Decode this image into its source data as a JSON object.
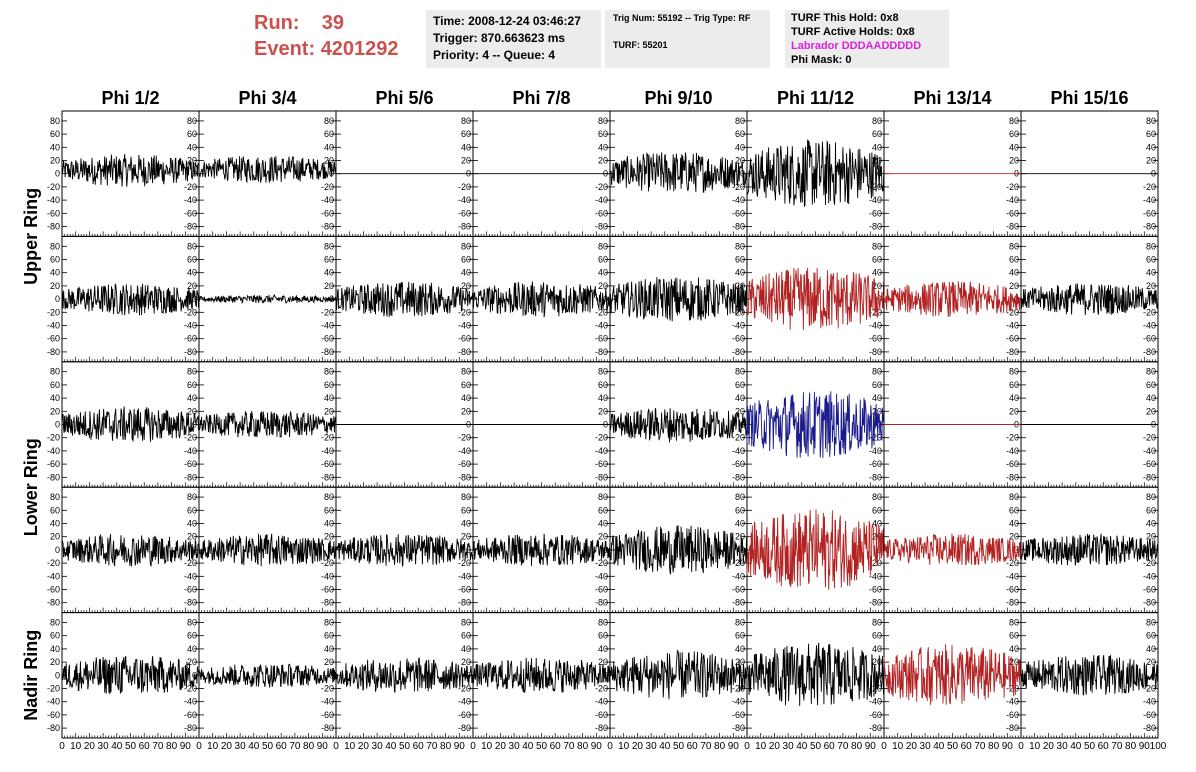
{
  "header": {
    "run_label": "Run:",
    "run_value": "39",
    "event_label": "Event:",
    "event_value": "4201292",
    "time": "Time: 2008-12-24 03:46:27",
    "trigger": "Trigger: 870.663623 ms",
    "priority": "Priority: 4 -- Queue: 4",
    "trig_num": "Trig Num: 55192 -- Trig Type: RF",
    "turf": "TURF: 55201",
    "turf_this_hold": "TURF This Hold: 0x8",
    "turf_active_holds": "TURF Active Holds: 0x8",
    "labrador": "Labrador DDDAADDDDD",
    "phi_mask": "Phi Mask: 0",
    "colors": {
      "run_text": "#c9524f",
      "labrador_text": "#e020e0"
    }
  },
  "chart_data": {
    "type": "line",
    "columns": [
      "Phi 1/2",
      "Phi 3/4",
      "Phi 5/6",
      "Phi 7/8",
      "Phi 9/10",
      "Phi 11/12",
      "Phi 13/14",
      "Phi 15/16"
    ],
    "ring_labels": [
      "Upper Ring",
      "Lower Ring",
      "Nadir Ring"
    ],
    "rows_per_ring": [
      2,
      2,
      1
    ],
    "xlim": [
      0,
      100
    ],
    "ylim": [
      -95,
      95
    ],
    "y_ticks": [
      80,
      60,
      40,
      20,
      0,
      -20,
      -40,
      -60,
      -80
    ],
    "x_tick_labels": [
      "0",
      "10",
      "20",
      "30",
      "40",
      "50",
      "60",
      "70",
      "80",
      "90",
      "100"
    ],
    "colors": {
      "black": "#000000",
      "red": "#b22222",
      "blue": "#1a1a8c"
    },
    "panels": [
      [
        {
          "color": "black",
          "amp": 20,
          "offset": 5,
          "flat": false
        },
        {
          "color": "black",
          "amp": 17,
          "offset": 7,
          "flat": false
        },
        {
          "color": "black",
          "amp": 0,
          "offset": 0,
          "flat": true
        },
        {
          "color": "black",
          "amp": 0,
          "offset": 0,
          "flat": true
        },
        {
          "color": "black",
          "amp": 26,
          "offset": 2,
          "flat": false
        },
        {
          "color": "black",
          "amp": 42,
          "offset": 0,
          "flat": false
        },
        {
          "color": "red",
          "amp": 0,
          "offset": 0,
          "flat": true
        },
        {
          "color": "black",
          "amp": 0,
          "offset": 0,
          "flat": true
        }
      ],
      [
        {
          "color": "black",
          "amp": 20,
          "offset": 0,
          "flat": false
        },
        {
          "color": "black",
          "amp": 5,
          "offset": 0,
          "flat": false
        },
        {
          "color": "black",
          "amp": 22,
          "offset": 0,
          "flat": false
        },
        {
          "color": "black",
          "amp": 22,
          "offset": 0,
          "flat": false
        },
        {
          "color": "black",
          "amp": 28,
          "offset": 0,
          "flat": false
        },
        {
          "color": "red",
          "amp": 40,
          "offset": 0,
          "flat": false
        },
        {
          "color": "red",
          "amp": 22,
          "offset": 0,
          "flat": false
        },
        {
          "color": "black",
          "amp": 20,
          "offset": 0,
          "flat": false
        }
      ],
      [
        {
          "color": "black",
          "amp": 22,
          "offset": 0,
          "flat": false
        },
        {
          "color": "black",
          "amp": 17,
          "offset": 0,
          "flat": false
        },
        {
          "color": "black",
          "amp": 0,
          "offset": 0,
          "flat": true
        },
        {
          "color": "black",
          "amp": 0,
          "offset": 0,
          "flat": true
        },
        {
          "color": "black",
          "amp": 22,
          "offset": 0,
          "flat": false
        },
        {
          "color": "blue",
          "amp": 42,
          "offset": 0,
          "flat": false
        },
        {
          "color": "red",
          "amp": 0,
          "offset": 0,
          "flat": true
        },
        {
          "color": "black",
          "amp": 0,
          "offset": 0,
          "flat": true
        }
      ],
      [
        {
          "color": "black",
          "amp": 20,
          "offset": 0,
          "flat": false
        },
        {
          "color": "black",
          "amp": 20,
          "offset": 0,
          "flat": false
        },
        {
          "color": "black",
          "amp": 20,
          "offset": 0,
          "flat": false
        },
        {
          "color": "black",
          "amp": 20,
          "offset": 0,
          "flat": false
        },
        {
          "color": "black",
          "amp": 30,
          "offset": 0,
          "flat": false
        },
        {
          "color": "red",
          "amp": 50,
          "offset": 0,
          "flat": false
        },
        {
          "color": "red",
          "amp": 20,
          "offset": 0,
          "flat": false
        },
        {
          "color": "black",
          "amp": 20,
          "offset": 0,
          "flat": false
        }
      ],
      [
        {
          "color": "black",
          "amp": 25,
          "offset": 0,
          "flat": false
        },
        {
          "color": "black",
          "amp": 15,
          "offset": 0,
          "flat": false
        },
        {
          "color": "black",
          "amp": 22,
          "offset": 0,
          "flat": false
        },
        {
          "color": "black",
          "amp": 22,
          "offset": 0,
          "flat": false
        },
        {
          "color": "black",
          "amp": 30,
          "offset": 0,
          "flat": false
        },
        {
          "color": "black",
          "amp": 40,
          "offset": 0,
          "flat": false
        },
        {
          "color": "red",
          "amp": 38,
          "offset": 0,
          "flat": false
        },
        {
          "color": "black",
          "amp": 25,
          "offset": 0,
          "flat": false
        }
      ]
    ]
  }
}
